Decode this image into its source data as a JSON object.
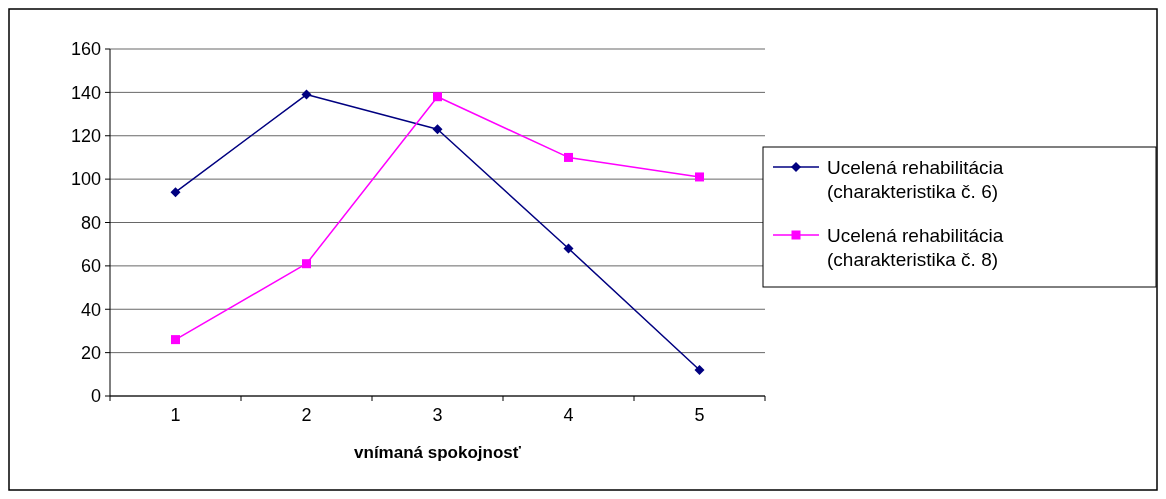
{
  "chart_data": {
    "type": "line",
    "xlabel": "vnímaná spokojnosť",
    "categories": [
      "1",
      "2",
      "3",
      "4",
      "5"
    ],
    "series": [
      {
        "name": "Ucelená rehabilitácia (charakteristika č. 6)",
        "color": "#000080",
        "marker": "diamond",
        "values": [
          94,
          139,
          123,
          68,
          12
        ]
      },
      {
        "name": "Ucelená rehabilitácia (charakteristika č. 8)",
        "color": "#ff00ff",
        "marker": "square",
        "values": [
          26,
          61,
          138,
          110,
          101
        ]
      }
    ],
    "ylim": [
      0,
      160
    ],
    "yticks": [
      0,
      20,
      40,
      60,
      80,
      100,
      120,
      140,
      160
    ],
    "grid": "y",
    "legend": "right"
  }
}
